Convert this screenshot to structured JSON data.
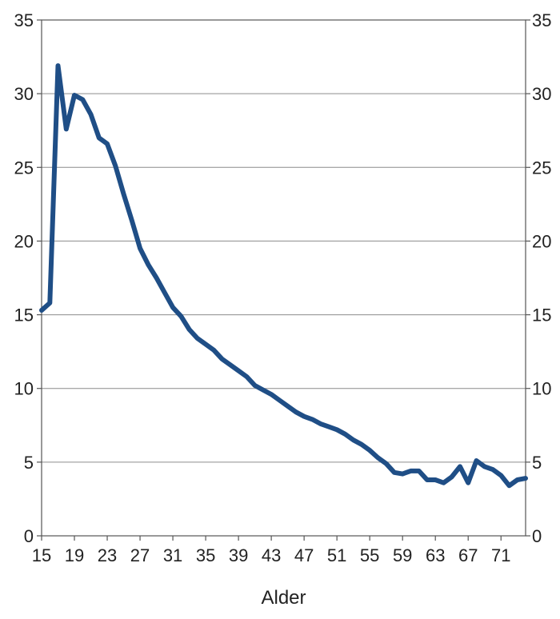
{
  "chart_data": {
    "type": "line",
    "title": "",
    "xlabel": "Alder",
    "ylabel": "",
    "ylim": [
      0,
      35
    ],
    "xlim": [
      15,
      74
    ],
    "yticks": [
      0,
      5,
      10,
      15,
      20,
      25,
      30,
      35
    ],
    "xticks": [
      15,
      19,
      23,
      27,
      31,
      35,
      39,
      43,
      47,
      51,
      55,
      59,
      63,
      67,
      71
    ],
    "grid": true,
    "right_axis": true,
    "line_color": "#1f4e86",
    "series": [
      {
        "x": [
          15,
          16,
          17,
          18,
          19,
          20,
          21,
          22,
          23,
          24,
          25,
          26,
          27,
          28,
          29,
          30,
          31,
          32,
          33,
          34,
          35,
          36,
          37,
          38,
          39,
          40,
          41,
          42,
          43,
          44,
          45,
          46,
          47,
          48,
          49,
          50,
          51,
          52,
          53,
          54,
          55,
          56,
          57,
          58,
          59,
          60,
          61,
          62,
          63,
          64,
          65,
          66,
          67,
          68,
          69,
          70,
          71,
          72,
          73,
          74
        ],
        "values": [
          15.3,
          15.8,
          31.9,
          27.6,
          29.9,
          29.6,
          28.6,
          27.0,
          26.6,
          25.1,
          23.2,
          21.4,
          19.5,
          18.4,
          17.5,
          16.5,
          15.5,
          14.9,
          14.0,
          13.4,
          13.0,
          12.6,
          12.0,
          11.6,
          11.2,
          10.8,
          10.2,
          9.9,
          9.6,
          9.2,
          8.8,
          8.4,
          8.1,
          7.9,
          7.6,
          7.4,
          7.2,
          6.9,
          6.5,
          6.2,
          5.8,
          5.3,
          4.9,
          4.3,
          4.2,
          4.4,
          4.4,
          3.8,
          3.8,
          3.6,
          4.0,
          4.7,
          3.6,
          5.1,
          4.7,
          4.5,
          4.1,
          3.4,
          3.8,
          3.9
        ]
      }
    ]
  }
}
